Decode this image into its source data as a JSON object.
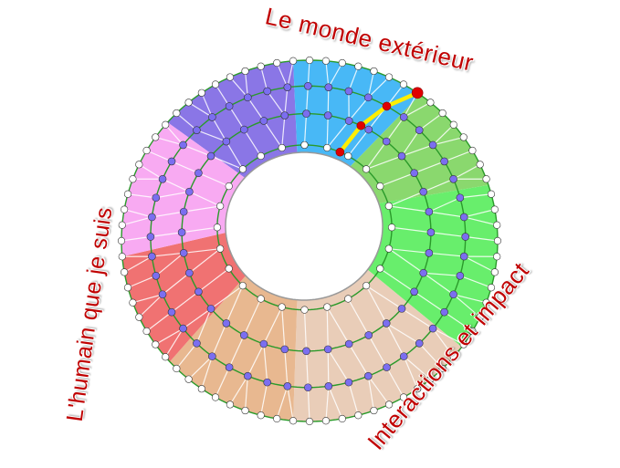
{
  "labels": {
    "top": "Le monde extérieur",
    "left": "L'humain que je suis",
    "right": "Interactions et impact"
  },
  "colors": {
    "label": "#c00000",
    "ring_line": "#2a9a2a",
    "blue_dot": "#7b6ef0",
    "white_dot": "#ffffff",
    "path": "#ffee00",
    "path_dot": "#e00000"
  },
  "sectors": [
    {
      "name": "purple",
      "color": "#8a76e6"
    },
    {
      "name": "blue",
      "color": "#48b8f6"
    },
    {
      "name": "light-green",
      "color": "#8ad86e"
    },
    {
      "name": "green",
      "color": "#68ee6c"
    },
    {
      "name": "light-tan",
      "color": "#e9cdb8"
    },
    {
      "name": "tan",
      "color": "#e8b890"
    },
    {
      "name": "red",
      "color": "#f07272"
    },
    {
      "name": "pink",
      "color": "#f8aaf2"
    }
  ]
}
